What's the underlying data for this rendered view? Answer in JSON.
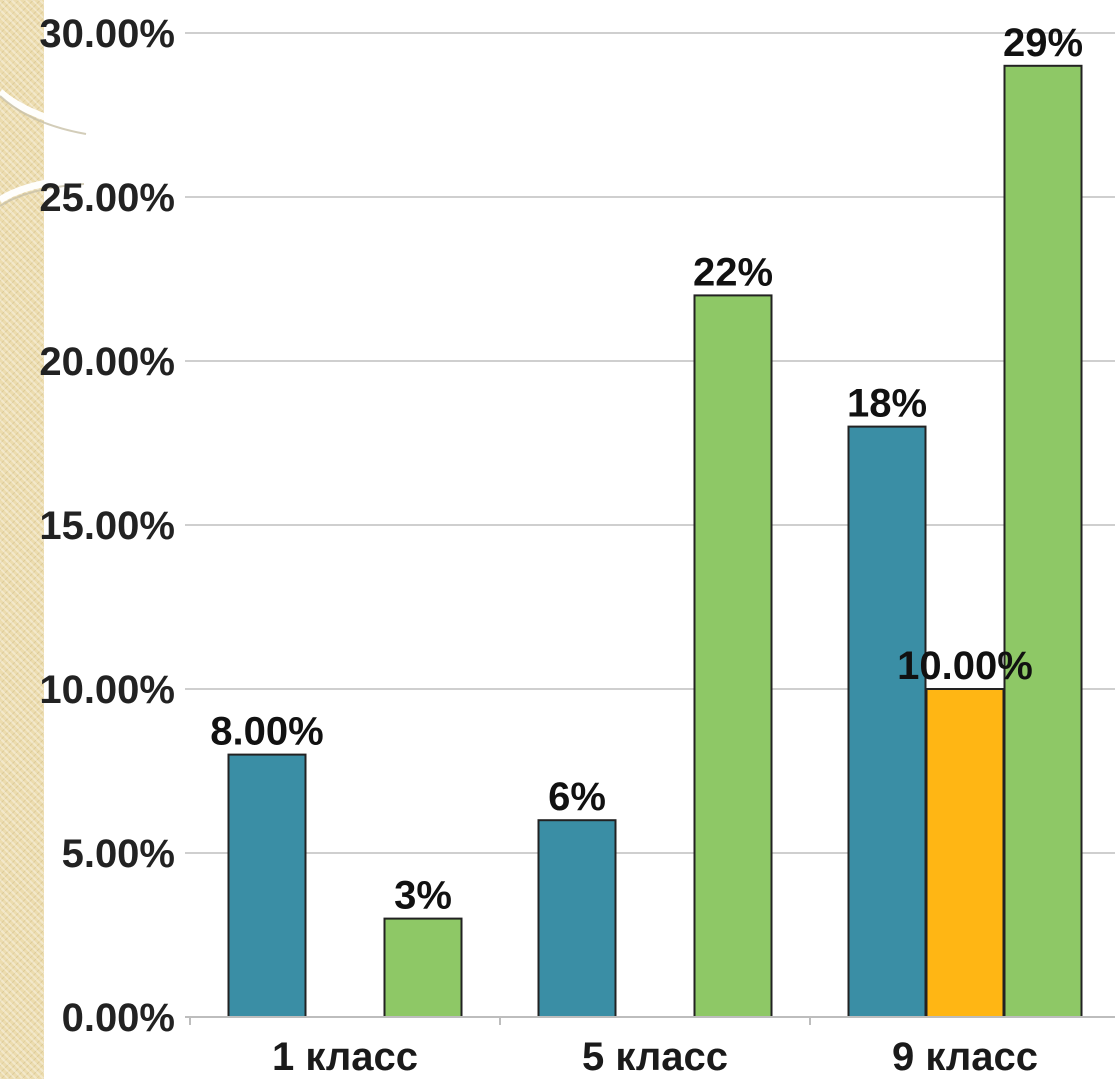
{
  "colors": {
    "series_1": "#3a8ea5",
    "series_2": "#ffb614",
    "series_3": "#8ec866",
    "gridline": "#cfcfcf",
    "bar_outline": "#222222",
    "side_strip": "#ecdcae"
  },
  "chart_data": {
    "type": "bar",
    "categories": [
      "1 класс",
      "5 класс",
      "9 класс"
    ],
    "series": [
      {
        "values": [
          8,
          6,
          18
        ],
        "labels": [
          "8.00%",
          "6%",
          "18%"
        ],
        "color": "#3a8ea5"
      },
      {
        "values": [
          0,
          0,
          10
        ],
        "labels": [
          null,
          null,
          "10.00%"
        ],
        "color": "#ffb614"
      },
      {
        "values": [
          3,
          22,
          29
        ],
        "labels": [
          "3%",
          "22%",
          "29%"
        ],
        "color": "#8ec866"
      }
    ],
    "y_ticks": [
      "0.00%",
      "5.00%",
      "10.00%",
      "15.00%",
      "20.00%",
      "25.00%",
      "30.00%"
    ],
    "ylim": [
      0,
      30
    ],
    "grid": true,
    "legend": "none"
  }
}
